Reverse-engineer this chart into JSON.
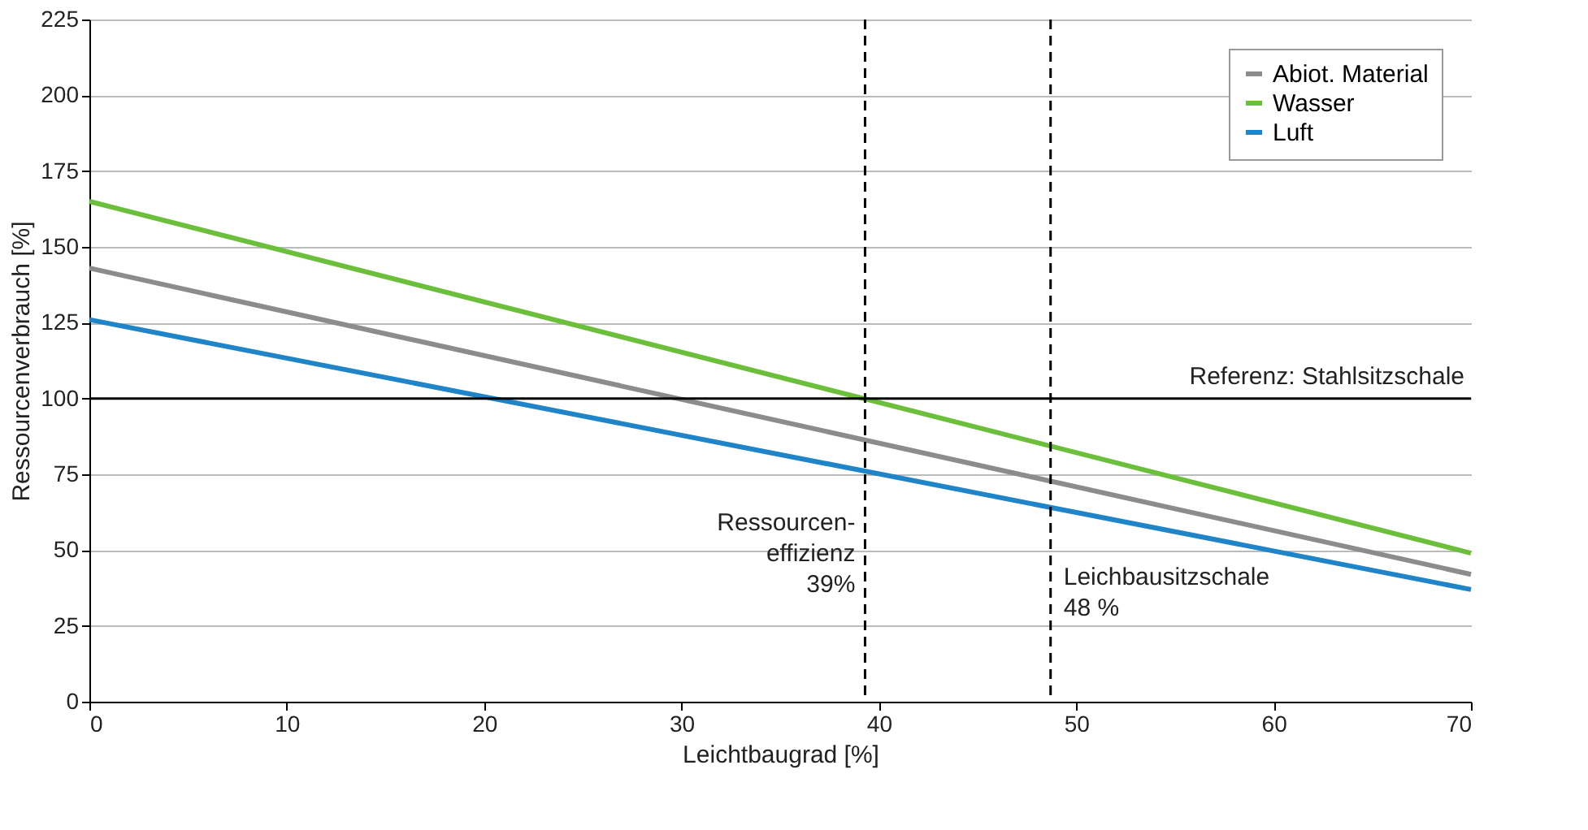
{
  "chart_data": {
    "type": "line",
    "xlabel": "Leichtbaugrad [%]",
    "ylabel": "Ressourcenverbrauch [%]",
    "x": [
      0,
      70
    ],
    "series": [
      {
        "name": "Abiot. Material",
        "color": "#8c8c8c",
        "values": [
          143,
          42
        ]
      },
      {
        "name": "Wasser",
        "color": "#6cbf3a",
        "values": [
          165,
          49
        ]
      },
      {
        "name": "Luft",
        "color": "#1f84c8",
        "values": [
          126,
          37
        ]
      }
    ],
    "xlim": [
      0,
      70
    ],
    "xticks": [
      0,
      10,
      20,
      30,
      40,
      50,
      60,
      70
    ],
    "ylim": [
      0,
      225
    ],
    "yticks": [
      0,
      25,
      50,
      75,
      100,
      125,
      150,
      175,
      200,
      225
    ],
    "ref_lines": [
      {
        "axis": "y",
        "value": 100,
        "label": "Referenz: Stahlsitzschale",
        "color": "#000000",
        "line_style": "solid"
      },
      {
        "axis": "x",
        "value": 39.3,
        "label": "Ressourcen-\neffizienz\n39%",
        "color": "#000000",
        "line_style": "dashed"
      },
      {
        "axis": "x",
        "value": 48.7,
        "label": "Leichbausitzschale\n 48 %",
        "color": "#000000",
        "line_style": "dashed"
      }
    ],
    "grid": "y",
    "legend": "top right",
    "line_style": "solid",
    "marker": "none"
  }
}
